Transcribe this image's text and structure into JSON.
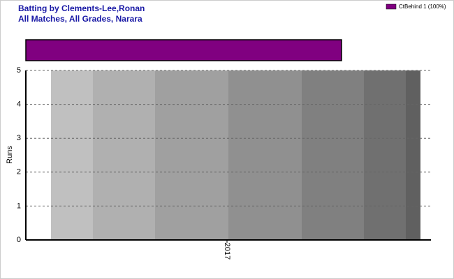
{
  "chart_data": {
    "type": "bar",
    "title": "Batting by Clements-Lee,Ronan",
    "subtitle": "All Matches, All Grades, Narara",
    "y_label": "Runs",
    "categories": [
      "2017"
    ],
    "values": [
      null
    ],
    "ylim": [
      0,
      5
    ],
    "yticks": [
      0,
      1,
      2,
      3,
      4,
      5
    ],
    "grid": true,
    "legend": "top-right",
    "dismissals": {
      "xlim": [
        0,
        100
      ],
      "series": [
        {
          "name": "CtBehind 1 (100%)",
          "color": "#800080",
          "values": [
            100
          ]
        }
      ]
    }
  }
}
